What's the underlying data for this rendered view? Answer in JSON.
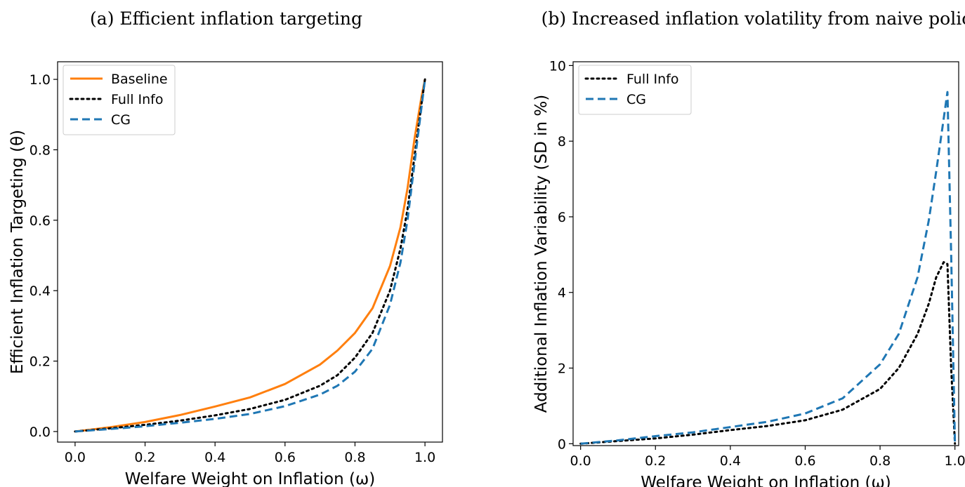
{
  "chart_data": [
    {
      "type": "line",
      "title": "(a) Efficient inflation targeting",
      "xlabel": "Welfare Weight on Inflation (ω)",
      "ylabel": "Efficient Inflation Targeting (θ)",
      "xlim": [
        -0.05,
        1.05
      ],
      "ylim": [
        -0.03,
        1.05
      ],
      "xticks": [
        "0.0",
        "0.2",
        "0.4",
        "0.6",
        "0.8",
        "1.0"
      ],
      "yticks": [
        "0.0",
        "0.2",
        "0.4",
        "0.6",
        "0.8",
        "1.0"
      ],
      "legend_position": "upper-left",
      "x": [
        0.0,
        0.1,
        0.2,
        0.3,
        0.4,
        0.5,
        0.6,
        0.7,
        0.75,
        0.8,
        0.85,
        0.9,
        0.93,
        0.95,
        0.97,
        0.99,
        1.0
      ],
      "series": [
        {
          "name": "Baseline",
          "color": "#ff7f0e",
          "style": "solid",
          "values": [
            0.0,
            0.012,
            0.027,
            0.047,
            0.071,
            0.097,
            0.135,
            0.19,
            0.23,
            0.28,
            0.35,
            0.47,
            0.58,
            0.69,
            0.83,
            0.95,
            1.0
          ]
        },
        {
          "name": "Full Info",
          "color": "#000000",
          "style": "dotted",
          "values": [
            0.0,
            0.009,
            0.019,
            0.031,
            0.046,
            0.064,
            0.09,
            0.13,
            0.16,
            0.21,
            0.28,
            0.4,
            0.52,
            0.63,
            0.78,
            0.93,
            1.0
          ]
        },
        {
          "name": "CG",
          "color": "#1f77b4",
          "style": "dashed",
          "values": [
            0.0,
            0.007,
            0.015,
            0.025,
            0.036,
            0.05,
            0.072,
            0.105,
            0.13,
            0.17,
            0.235,
            0.36,
            0.48,
            0.6,
            0.76,
            0.92,
            1.0
          ]
        }
      ]
    },
    {
      "type": "line",
      "title": "(b) Increased inflation volatility from naive policy",
      "xlabel": "Welfare Weight on Inflation (ω)",
      "ylabel": "Additional Inflation Variability (SD in %)",
      "xlim": [
        -0.02,
        1.01
      ],
      "ylim": [
        -0.05,
        10.1
      ],
      "xticks": [
        "0.0",
        "0.2",
        "0.4",
        "0.6",
        "0.8",
        "1.0"
      ],
      "yticks": [
        "0",
        "2",
        "4",
        "6",
        "8",
        "10"
      ],
      "legend_position": "upper-left",
      "x": [
        0.0,
        0.1,
        0.2,
        0.3,
        0.4,
        0.5,
        0.6,
        0.7,
        0.8,
        0.85,
        0.9,
        0.93,
        0.95,
        0.97,
        0.98,
        0.99,
        1.0
      ],
      "series": [
        {
          "name": "Full Info",
          "color": "#000000",
          "style": "dotted",
          "values": [
            0.0,
            0.07,
            0.14,
            0.24,
            0.36,
            0.47,
            0.62,
            0.9,
            1.45,
            2.0,
            2.9,
            3.7,
            4.4,
            4.8,
            4.75,
            2.0,
            0.0
          ]
        },
        {
          "name": "CG",
          "color": "#1f77b4",
          "style": "dashed",
          "values": [
            0.0,
            0.09,
            0.2,
            0.3,
            0.44,
            0.58,
            0.8,
            1.2,
            2.1,
            2.9,
            4.4,
            5.9,
            7.2,
            8.6,
            9.3,
            5.0,
            0.0
          ]
        }
      ]
    }
  ]
}
